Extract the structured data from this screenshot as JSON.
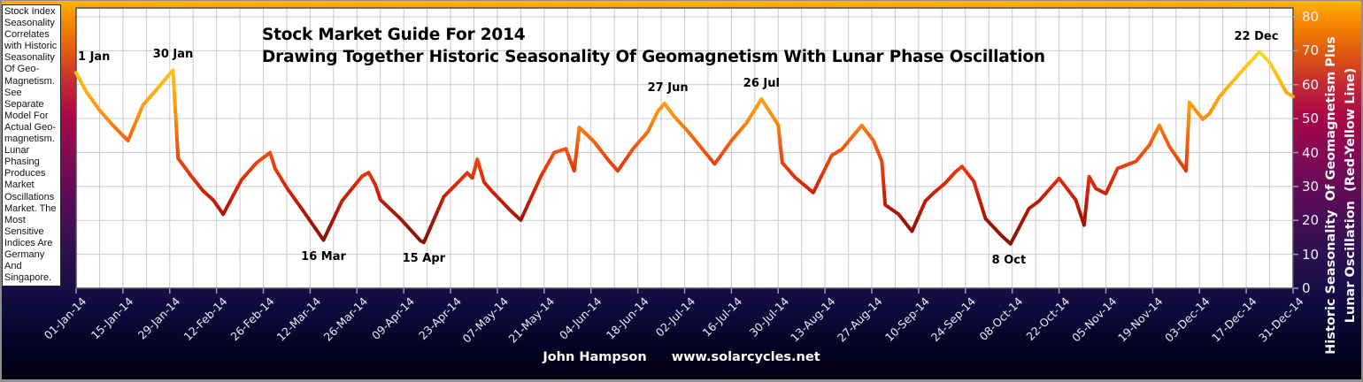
{
  "note": {
    "text": "Stock Index Seasonality Correlates with Historic Seasonality Of Geo-Magnetism. See Separate Model For Actual Geo-magnetism. Lunar Phasing Produces Market Oscillations Market. The Most Sensitive Indices Are Germany And Singapore."
  },
  "footer": {
    "author": "John Hampson",
    "website": "www.solarcycles.net"
  },
  "colors": {
    "plot_background": "#FFFFFF",
    "gridline": "#C9C9C9",
    "background_top": "#FFB300",
    "background_bottom": "#020210",
    "axis_text": "#EFEFF8",
    "line_low_value": "#5E0800",
    "line_high_value": "#FFE82A"
  },
  "chart_data": {
    "type": "line",
    "title_line1": "Stock Market Guide For 2014",
    "title_line2": "Drawing Together Historic Seasonality Of Geomagnetism With Lunar Phase Oscillation",
    "grid": true,
    "x_axis": {
      "categories": [
        "01-Jan-14",
        "15-Jan-14",
        "29-Jan-14",
        "12-Feb-14",
        "26-Feb-14",
        "12-Mar-14",
        "26-Mar-14",
        "09-Apr-14",
        "23-Apr-14",
        "07-May-14",
        "21-May-14",
        "04-Jun-14",
        "18-Jun-14",
        "02-Jul-14",
        "16-Jul-14",
        "30-Jul-14",
        "13-Aug-14",
        "27-Aug-14",
        "10-Sep-14",
        "24-Sep-14",
        "08-Oct-14",
        "22-Oct-14",
        "05-Nov-14",
        "19-Nov-14",
        "03-Dec-14",
        "17-Dec-14",
        "31-Dec-14"
      ],
      "days_per_category": 14,
      "gridline_every_days": 7,
      "range_days": [
        0,
        364
      ]
    },
    "y_axis": {
      "side": "right",
      "label_line1": "Historic Seasonality  Of Geomagnetism Plus",
      "label_line2": "Lunar Oscillation  (Red-Yellow Line)",
      "ticks": [
        0,
        10,
        20,
        30,
        40,
        50,
        60,
        70,
        80
      ],
      "range": [
        0,
        80
      ]
    },
    "series": [
      {
        "name": "Historic Seasonality Of Geomagnetism Plus Lunar Oscillation (Red-Yellow Line)",
        "style": "red-yellow-gradient",
        "points": [
          [
            0,
            63.5
          ],
          [
            3,
            58
          ],
          [
            7,
            52.5
          ],
          [
            11,
            48
          ],
          [
            15.5,
            43.5
          ],
          [
            20,
            54
          ],
          [
            24,
            58.5
          ],
          [
            29,
            64.3
          ],
          [
            30.5,
            38.3
          ],
          [
            34.5,
            33
          ],
          [
            38,
            28.7
          ],
          [
            41,
            26
          ],
          [
            44,
            21.8
          ],
          [
            49.5,
            32
          ],
          [
            54,
            37
          ],
          [
            58,
            40
          ],
          [
            59.5,
            35.3
          ],
          [
            63,
            29.6
          ],
          [
            68,
            22.7
          ],
          [
            74,
            14.2
          ],
          [
            79.5,
            25.7
          ],
          [
            85.5,
            33
          ],
          [
            87.5,
            34.1
          ],
          [
            89.5,
            30.5
          ],
          [
            91,
            26.1
          ],
          [
            97,
            20.5
          ],
          [
            103,
            14
          ],
          [
            104,
            13.5
          ],
          [
            110,
            27
          ],
          [
            117,
            34
          ],
          [
            118.5,
            32.5
          ],
          [
            120,
            38
          ],
          [
            122,
            31.3
          ],
          [
            124,
            29
          ],
          [
            130,
            22.8
          ],
          [
            133,
            20.1
          ],
          [
            139,
            33
          ],
          [
            143,
            40
          ],
          [
            146.5,
            41.1
          ],
          [
            149,
            34.6
          ],
          [
            150.5,
            47.4
          ],
          [
            155,
            43.1
          ],
          [
            159.5,
            37.4
          ],
          [
            162,
            34.6
          ],
          [
            166.5,
            41
          ],
          [
            171,
            46.1
          ],
          [
            174,
            52.2
          ],
          [
            176,
            54.5
          ],
          [
            179,
            50.5
          ],
          [
            183,
            46.2
          ],
          [
            191,
            36.6
          ],
          [
            196,
            43.5
          ],
          [
            200.5,
            48.7
          ],
          [
            205,
            55.8
          ],
          [
            210,
            48.1
          ],
          [
            211.2,
            37
          ],
          [
            215,
            32.7
          ],
          [
            220.5,
            28.2
          ],
          [
            226,
            39.2
          ],
          [
            229,
            40.9
          ],
          [
            235,
            48
          ],
          [
            238.5,
            43.5
          ],
          [
            241,
            37.4
          ],
          [
            242,
            24.6
          ],
          [
            246,
            21.8
          ],
          [
            250,
            16.8
          ],
          [
            254,
            25.7
          ],
          [
            256.5,
            28.1
          ],
          [
            260,
            31
          ],
          [
            263,
            34.3
          ],
          [
            265,
            35.9
          ],
          [
            268.5,
            31.5
          ],
          [
            272,
            20.5
          ],
          [
            277,
            15.3
          ],
          [
            279.5,
            13.1
          ],
          [
            285,
            23.5
          ],
          [
            288,
            25.7
          ],
          [
            294,
            32.4
          ],
          [
            299,
            26
          ],
          [
            301.5,
            18.6
          ],
          [
            303,
            32.9
          ],
          [
            305,
            29.4
          ],
          [
            308,
            27.9
          ],
          [
            311.5,
            35.3
          ],
          [
            317,
            37.4
          ],
          [
            321,
            42.2
          ],
          [
            324,
            48
          ],
          [
            327,
            41.8
          ],
          [
            332,
            34.6
          ],
          [
            333,
            54.8
          ],
          [
            335,
            52.2
          ],
          [
            337,
            49.8
          ],
          [
            339,
            51.5
          ],
          [
            342,
            56.5
          ],
          [
            349,
            64.4
          ],
          [
            354,
            69.7
          ],
          [
            357,
            66.5
          ],
          [
            359.5,
            62.2
          ],
          [
            362,
            57.7
          ],
          [
            364,
            56.5
          ]
        ]
      }
    ],
    "annotations": [
      {
        "label": "1 Jan",
        "day": 0,
        "value": 63.5,
        "placement": "above",
        "align": "left"
      },
      {
        "label": "30 Jan",
        "day": 29,
        "value": 64.3,
        "placement": "above"
      },
      {
        "label": "16 Mar",
        "day": 74,
        "value": 14.2,
        "placement": "below"
      },
      {
        "label": "15 Apr",
        "day": 104,
        "value": 13.5,
        "placement": "below"
      },
      {
        "label": "27 Jun",
        "day": 177,
        "value": 54.5,
        "placement": "above"
      },
      {
        "label": "26 Jul",
        "day": 205,
        "value": 55.8,
        "placement": "above"
      },
      {
        "label": "8 Oct",
        "day": 279,
        "value": 13.1,
        "placement": "below"
      },
      {
        "label": "22 Dec",
        "day": 353,
        "value": 69.7,
        "placement": "above"
      }
    ],
    "line_gradient": [
      {
        "value": 0,
        "color": "#5E0800"
      },
      {
        "value": 12,
        "color": "#7C1404"
      },
      {
        "value": 20,
        "color": "#A01606"
      },
      {
        "value": 25,
        "color": "#BC1C08"
      },
      {
        "value": 30,
        "color": "#D62608"
      },
      {
        "value": 35,
        "color": "#E63A0C"
      },
      {
        "value": 40,
        "color": "#EE4F10"
      },
      {
        "value": 45,
        "color": "#F56A0E"
      },
      {
        "value": 50,
        "color": "#FB8C0C"
      },
      {
        "value": 56,
        "color": "#FFA312"
      },
      {
        "value": 62,
        "color": "#FFBC14"
      },
      {
        "value": 69,
        "color": "#FFD51E"
      },
      {
        "value": 80,
        "color": "#FFE82A"
      }
    ]
  }
}
